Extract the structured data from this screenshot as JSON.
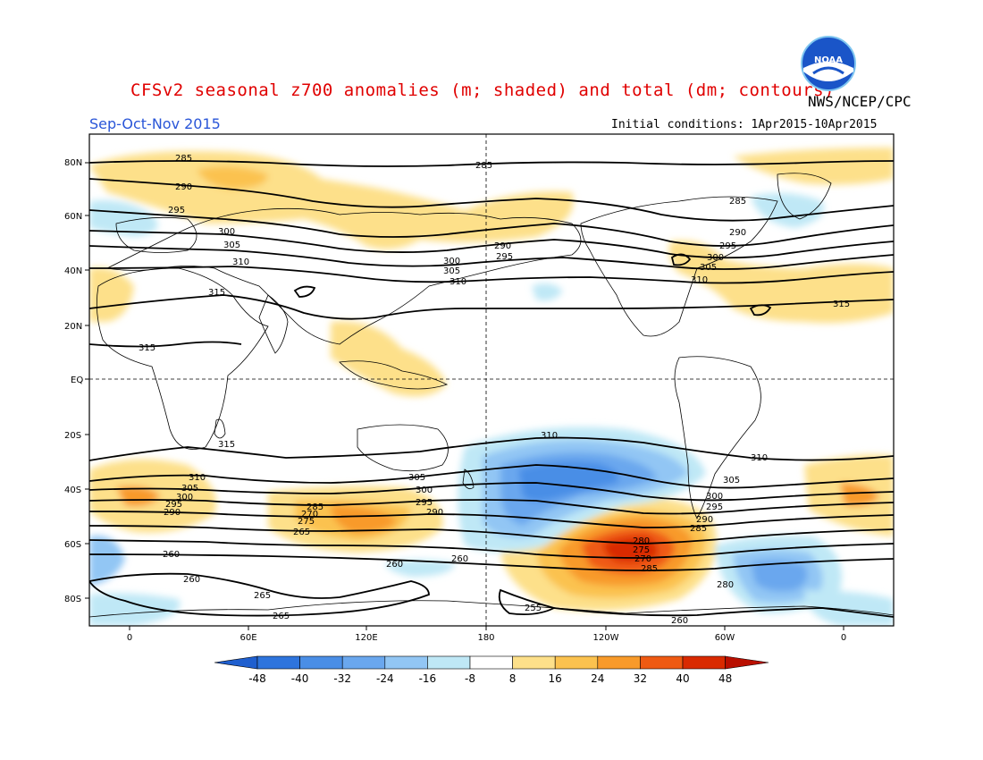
{
  "header": {
    "title": "CFSv2 seasonal z700 anomalies (m; shaded) and total (dm; contours)",
    "agency": "NWS/NCEP/CPC",
    "season": "Sep-Oct-Nov 2015",
    "initial_conditions": "Initial conditions: 1Apr2015-10Apr2015",
    "logo_text": "NOAA"
  },
  "axes": {
    "lat_labels": [
      "80N",
      "60N",
      "40N",
      "20N",
      "EQ",
      "20S",
      "40S",
      "60S",
      "80S"
    ],
    "lon_labels": [
      "0",
      "60E",
      "120E",
      "180",
      "120W",
      "60W",
      "0"
    ]
  },
  "colorbar": {
    "levels": [
      "-48",
      "-40",
      "-32",
      "-24",
      "-16",
      "-8",
      "8",
      "16",
      "24",
      "32",
      "40",
      "48"
    ],
    "colors": [
      "#1f5fcf",
      "#2e74dd",
      "#4a8ee6",
      "#6aa7ee",
      "#92c6f4",
      "#bfe8f6",
      "#ffffff",
      "#fde08a",
      "#fbc24f",
      "#f89a2a",
      "#ef5a12",
      "#d92a00",
      "#b90f00"
    ]
  },
  "contour_labels": [
    "285",
    "290",
    "295",
    "300",
    "305",
    "310",
    "315",
    "265",
    "260",
    "280",
    "275",
    "270",
    "255"
  ],
  "colors": {
    "title": "#e00000",
    "season": "#2a56d8",
    "background": "#ffffff"
  }
}
